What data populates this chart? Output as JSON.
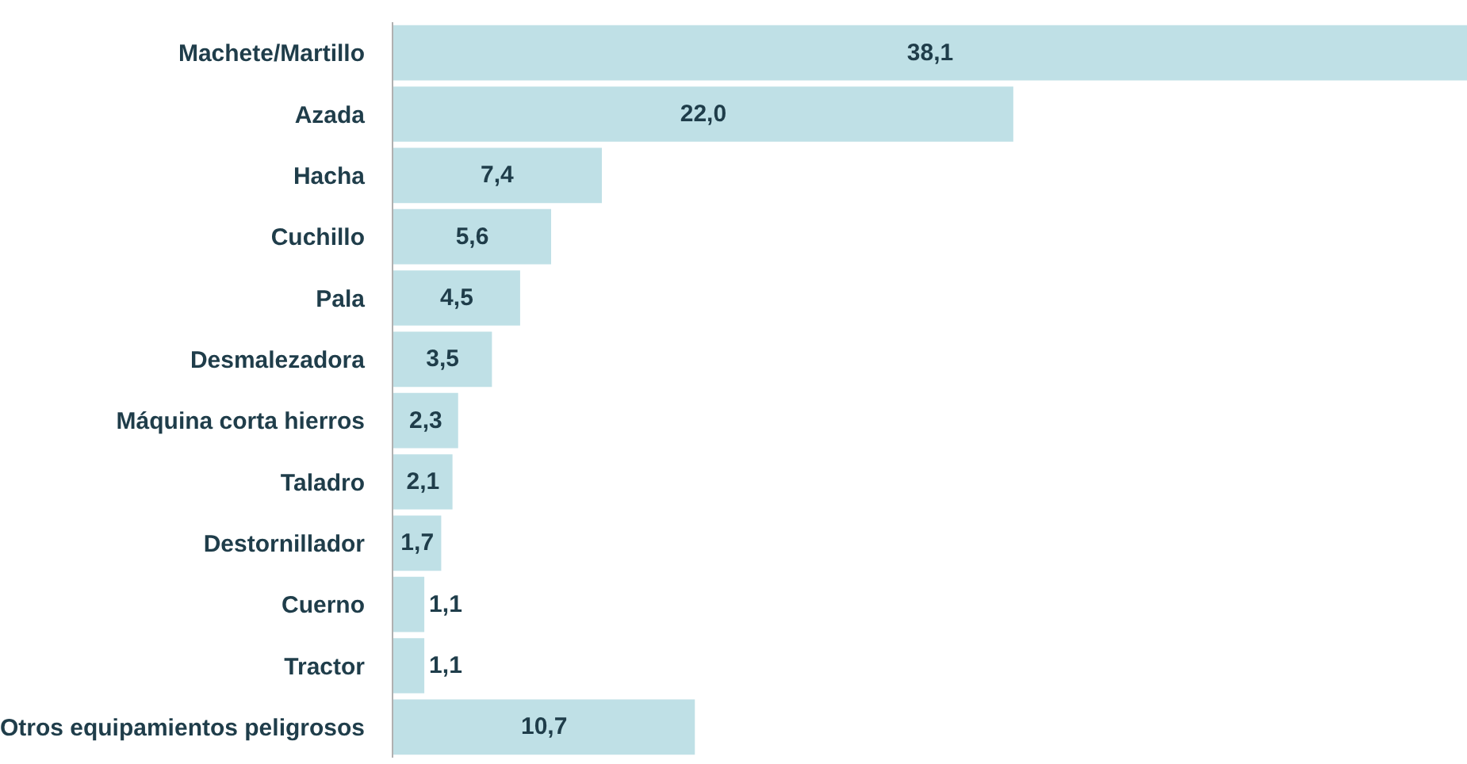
{
  "chart_data": {
    "type": "bar",
    "orientation": "horizontal",
    "categories": [
      "Machete/Martillo",
      "Azada",
      "Hacha",
      "Cuchillo",
      "Pala",
      "Desmalezadora",
      "Máquina corta hierros",
      "Taladro",
      "Destornillador",
      "Cuerno",
      "Tractor",
      "Otros equipamientos peligrosos"
    ],
    "values": [
      38.1,
      22.0,
      7.4,
      5.6,
      4.5,
      3.5,
      2.3,
      2.1,
      1.7,
      1.1,
      1.1,
      10.7
    ],
    "value_labels": [
      "38,1",
      "22,0",
      "7,4",
      "5,6",
      "4,5",
      "3,5",
      "2,3",
      "2,1",
      "1,7",
      "1,1",
      "1,1",
      "10,7"
    ],
    "color": "#bfe0e6",
    "xlim": [
      0,
      38.1
    ],
    "tick_labels": "y",
    "legend": false
  }
}
